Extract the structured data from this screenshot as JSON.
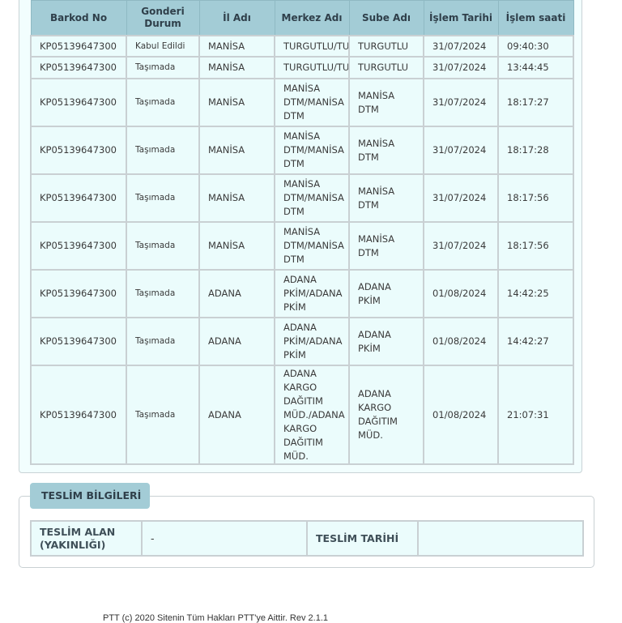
{
  "movements": {
    "headers": [
      "Barkod No",
      "Gonderi Durum",
      "İl Adı",
      "Merkez Adı",
      "Sube Adı",
      "İşlem Tarihi",
      "İşlem saati"
    ],
    "rows": [
      [
        "KP05139647300",
        "Kabul Edildi",
        "MANİSA",
        "TURGUTLU/TU",
        "TURGUTLU",
        "31/07/2024",
        "09:40:30"
      ],
      [
        "KP05139647300",
        "Taşımada",
        "MANİSA",
        "TURGUTLU/TU",
        "TURGUTLU",
        "31/07/2024",
        "13:44:45"
      ],
      [
        "KP05139647300",
        "Taşımada",
        "MANİSA",
        "MANİSA DTM/MANİSA DTM",
        "MANİSA DTM",
        "31/07/2024",
        "18:17:27"
      ],
      [
        "KP05139647300",
        "Taşımada",
        "MANİSA",
        "MANİSA DTM/MANİSA DTM",
        "MANİSA DTM",
        "31/07/2024",
        "18:17:28"
      ],
      [
        "KP05139647300",
        "Taşımada",
        "MANİSA",
        "MANİSA DTM/MANİSA DTM",
        "MANİSA DTM",
        "31/07/2024",
        "18:17:56"
      ],
      [
        "KP05139647300",
        "Taşımada",
        "MANİSA",
        "MANİSA DTM/MANİSA DTM",
        "MANİSA DTM",
        "31/07/2024",
        "18:17:56"
      ],
      [
        "KP05139647300",
        "Taşımada",
        "ADANA",
        "ADANA PKİM/ADANA PKİM",
        "ADANA PKİM",
        "01/08/2024",
        "14:42:25"
      ],
      [
        "KP05139647300",
        "Taşımada",
        "ADANA",
        "ADANA PKİM/ADANA PKİM",
        "ADANA PKİM",
        "01/08/2024",
        "14:42:27"
      ],
      [
        "KP05139647300",
        "Taşımada",
        "ADANA",
        "ADANA KARGO DAĞITIM MÜD./ADANA KARGO DAĞITIM MÜD.",
        "ADANA KARGO DAĞITIM MÜD.",
        "01/08/2024",
        "21:07:31"
      ]
    ]
  },
  "delivery": {
    "title": "TESLİM BİLGİLERİ",
    "receiver_label": "TESLİM ALAN (YAKINLIĞI)",
    "receiver_value": "-",
    "date_label": "TESLİM TARİHİ",
    "date_value": ""
  },
  "footer": "PTT (c) 2020 Sitenin Tüm Hakları PTT'ye Aittir. Rev 2.1.1",
  "colors": {
    "header": "#a3ccd6",
    "cell": "#ebfcfc"
  }
}
